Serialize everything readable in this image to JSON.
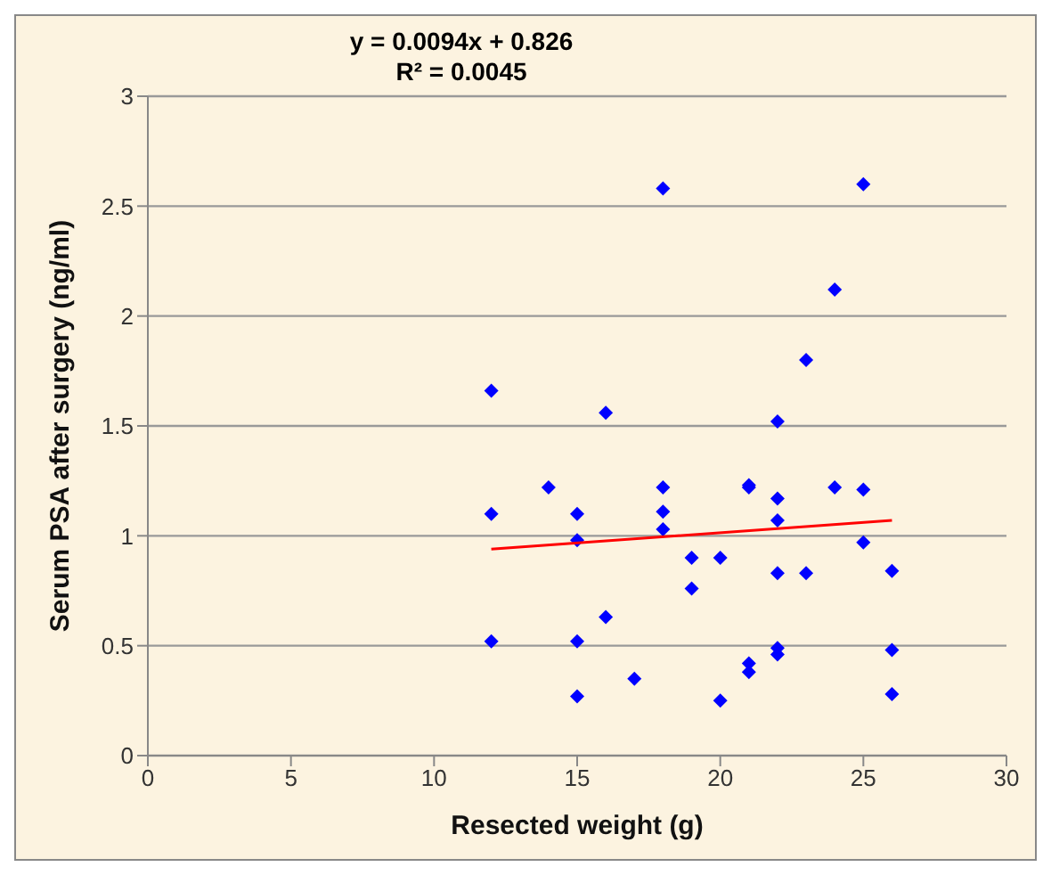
{
  "chart_data": {
    "type": "scatter",
    "xlabel": "Resected weight (g)",
    "ylabel": "Serum PSA after surgery (ng/ml)",
    "annotations": [
      "y = 0.0094x + 0.826",
      "R² = 0.0045"
    ],
    "xlim": [
      0,
      30
    ],
    "xticks": [
      0,
      5,
      10,
      15,
      20,
      25,
      30
    ],
    "ylim": [
      0,
      3
    ],
    "yticks": [
      0,
      0.5,
      1,
      1.5,
      2,
      2.5,
      3
    ],
    "grid": "y",
    "series": [
      {
        "color": "#0000ff",
        "marker": "diamond",
        "x": [
          12,
          12,
          12,
          14,
          15,
          15,
          15,
          15,
          16,
          16,
          17,
          18,
          18,
          18,
          18,
          19,
          19,
          20,
          20,
          21,
          21,
          21,
          21,
          22,
          22,
          22,
          22,
          22,
          22,
          23,
          23,
          24,
          24,
          25,
          25,
          25,
          26,
          26,
          26
        ],
        "values": [
          1.66,
          1.1,
          0.52,
          1.22,
          1.1,
          0.98,
          0.52,
          0.27,
          1.56,
          0.63,
          0.35,
          2.58,
          1.22,
          1.11,
          1.03,
          0.9,
          0.76,
          0.9,
          0.25,
          1.23,
          1.22,
          0.42,
          0.38,
          1.52,
          1.17,
          1.07,
          0.83,
          0.49,
          0.46,
          1.8,
          0.83,
          2.12,
          1.22,
          2.6,
          1.21,
          0.97,
          0.84,
          0.48,
          0.28
        ]
      },
      {
        "type": "line",
        "color": "#ff0000",
        "marker": "none",
        "x": [
          12,
          26
        ],
        "values": [
          0.94,
          1.07
        ]
      }
    ]
  }
}
